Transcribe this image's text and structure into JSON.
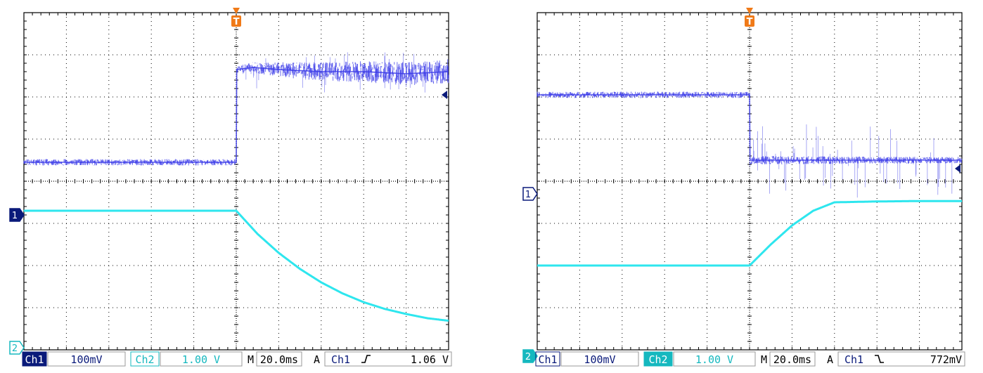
{
  "colors": {
    "ch1": "#3a3ae8",
    "ch2": "#2ee6ee",
    "ch1_label_bg": "#0a1a7a",
    "ch2_label_bg": "#15b8bf",
    "trigger": "#f07a18",
    "grid": "#000000"
  },
  "chart_data": [
    {
      "type": "line",
      "title": "",
      "xlabel": "",
      "ylabel": "",
      "grid": true,
      "x_divisions": 10,
      "y_divisions": 8,
      "trigger_marker": "T",
      "trigger_division": 5,
      "ch1_marker": "1",
      "ch2_marker": "2",
      "ch1_marker_division": 4.8,
      "ch2_marker_division": 7.95,
      "ch1_marker_filled": true,
      "ch2_marker_filled": false,
      "trigger_level_division": 1.95,
      "series": [
        {
          "name": "Ch1",
          "x_div": [
            0,
            5,
            5,
            5.4,
            6,
            7,
            8,
            9,
            10
          ],
          "y_div": [
            3.55,
            3.55,
            1.35,
            1.3,
            1.35,
            1.4,
            1.4,
            1.45,
            1.4
          ],
          "noise_div": [
            0.15,
            0.15,
            0.15,
            0.25,
            0.35,
            0.45,
            0.5,
            0.55,
            0.6
          ]
        },
        {
          "name": "Ch2",
          "x_div": [
            0,
            1,
            2,
            3,
            4,
            5,
            5.5,
            6,
            6.5,
            7,
            7.5,
            8,
            8.5,
            9,
            9.5,
            10
          ],
          "y_div": [
            4.7,
            4.7,
            4.7,
            4.7,
            4.7,
            4.7,
            5.25,
            5.7,
            6.08,
            6.4,
            6.66,
            6.87,
            7.03,
            7.15,
            7.25,
            7.31
          ],
          "noise_div": [
            0.03,
            0.03,
            0.03,
            0.03,
            0.03,
            0.03,
            0.03,
            0.03,
            0.03,
            0.03,
            0.03,
            0.03,
            0.03,
            0.03,
            0.03,
            0.03
          ]
        }
      ],
      "readout": {
        "ch1_label": "Ch1",
        "ch1_scale": "100mV",
        "ch2_label": "Ch2",
        "ch2_scale": "1.00 V",
        "time_prefix": "M",
        "time_scale": "20.0ms",
        "trig_mode": "A",
        "trig_source": "Ch1",
        "trig_slope": "rising",
        "trig_level": "1.06 V"
      }
    },
    {
      "type": "line",
      "title": "",
      "xlabel": "",
      "ylabel": "",
      "grid": true,
      "x_divisions": 10,
      "y_divisions": 8,
      "trigger_marker": "T",
      "trigger_division": 5,
      "ch1_marker": "1",
      "ch2_marker": "2",
      "ch1_marker_division": 4.3,
      "ch2_marker_division": 8.15,
      "ch1_marker_filled": false,
      "ch2_marker_filled": true,
      "trigger_level_division": 3.7,
      "series": [
        {
          "name": "Ch1",
          "x_div": [
            0,
            5,
            5,
            10
          ],
          "y_div": [
            1.95,
            1.95,
            3.5,
            3.5
          ],
          "noise_div": [
            0.15,
            0.15,
            0.2,
            0.15
          ]
        },
        {
          "name": "Ch2",
          "x_div": [
            0,
            1,
            2,
            3,
            4,
            5,
            5.5,
            6,
            6.5,
            7,
            8,
            9,
            10
          ],
          "y_div": [
            6.0,
            6.0,
            6.0,
            6.0,
            6.0,
            6.0,
            5.5,
            5.05,
            4.7,
            4.5,
            4.48,
            4.47,
            4.47
          ],
          "noise_div": [
            0.03,
            0.03,
            0.03,
            0.03,
            0.03,
            0.03,
            0.03,
            0.03,
            0.03,
            0.03,
            0.03,
            0.03,
            0.03
          ]
        }
      ],
      "readout": {
        "ch1_label": "Ch1",
        "ch1_scale": "100mV",
        "ch2_label": "Ch2",
        "ch2_scale": "1.00 V",
        "time_prefix": "M",
        "time_scale": "20.0ms",
        "trig_mode": "A",
        "trig_source": "Ch1",
        "trig_slope": "falling",
        "trig_level": "772mV"
      }
    }
  ]
}
